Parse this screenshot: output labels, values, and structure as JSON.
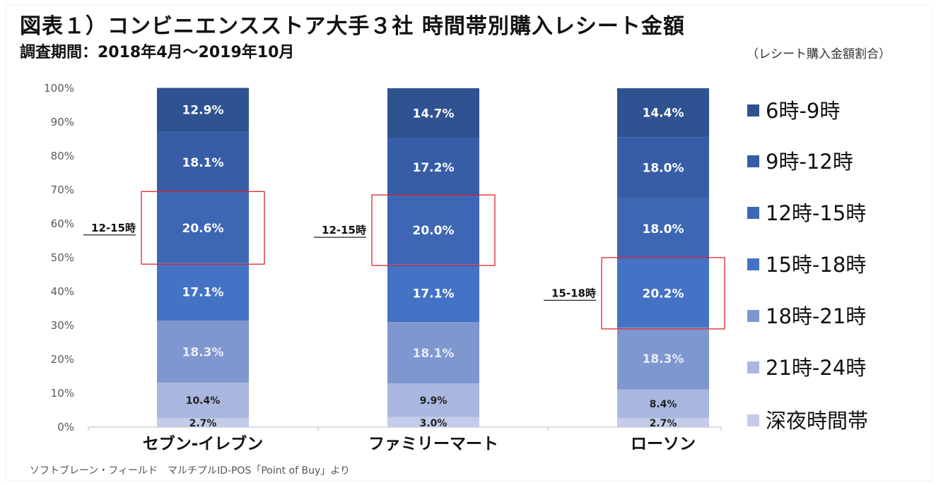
{
  "header": {
    "title": "図表１）コンビニエンスストア大手３社 時間帯別購入レシート金額",
    "subtitle": "調査期間：2018年4月～2019年10月",
    "unit_note": "（レシート購入金額割合）"
  },
  "footer": {
    "source": "ソフトブレーン・フィールド　マルチプルID-POS「Point of Buy」より"
  },
  "chart_data": {
    "type": "bar",
    "stacked": true,
    "title": "コンビニエンスストア大手３社 時間帯別購入レシート金額",
    "xlabel": "",
    "ylabel": "レシート購入金額割合",
    "ylim": [
      0,
      100
    ],
    "yticks": [
      "0%",
      "10%",
      "20%",
      "30%",
      "40%",
      "50%",
      "60%",
      "70%",
      "80%",
      "90%",
      "100%"
    ],
    "grid": false,
    "legend_position": "right",
    "categories": [
      "セブン-イレブン",
      "ファミリーマート",
      "ローソン"
    ],
    "series": [
      {
        "name": "深夜時間帯",
        "color": "#c3cce8",
        "label_color": "#222222",
        "values": [
          2.7,
          3.0,
          2.7
        ],
        "labels": [
          "2.7%",
          "3.0%",
          "2.7%"
        ]
      },
      {
        "name": "21時-24時",
        "color": "#a9b7df",
        "label_color": "#222222",
        "values": [
          10.4,
          9.9,
          8.4
        ],
        "labels": [
          "10.4%",
          "9.9%",
          "8.4%"
        ]
      },
      {
        "name": "18時-21時",
        "color": "#7f97cf",
        "label_color": "#e8ecf7",
        "values": [
          18.3,
          18.1,
          18.3
        ],
        "labels": [
          "18.3%",
          "18.1%",
          "18.3%"
        ]
      },
      {
        "name": "15時-18時",
        "color": "#4472c4",
        "label_color": "#ffffff",
        "values": [
          17.1,
          17.1,
          20.2
        ],
        "labels": [
          "17.1%",
          "17.1%",
          "20.2%"
        ]
      },
      {
        "name": "12時-15時",
        "color": "#3d67b5",
        "label_color": "#ffffff",
        "values": [
          20.6,
          20.0,
          18.0
        ],
        "labels": [
          "20.6%",
          "20.0%",
          "18.0%"
        ]
      },
      {
        "name": "9時-12時",
        "color": "#375da7",
        "label_color": "#ffffff",
        "values": [
          18.1,
          17.2,
          18.0
        ],
        "labels": [
          "18.1%",
          "17.2%",
          "18.0%"
        ]
      },
      {
        "name": "6時-9時",
        "color": "#2f5290",
        "label_color": "#ffffff",
        "values": [
          12.9,
          14.7,
          14.4
        ],
        "labels": [
          "12.9%",
          "14.7%",
          "14.4%"
        ]
      }
    ],
    "legend_order": [
      "6時-9時",
      "9時-12時",
      "12時-15時",
      "15時-18時",
      "18時-21時",
      "21時-24時",
      "深夜時間帯"
    ],
    "annotations": [
      {
        "category": "セブン-イレブン",
        "series": "12時-15時",
        "text": "12-15時",
        "highlight_color": "#e0262c"
      },
      {
        "category": "ファミリーマート",
        "series": "12時-15時",
        "text": "12-15時",
        "highlight_color": "#e0262c"
      },
      {
        "category": "ローソン",
        "series": "15時-18時",
        "text": "15-18時",
        "highlight_color": "#e0262c"
      }
    ]
  }
}
